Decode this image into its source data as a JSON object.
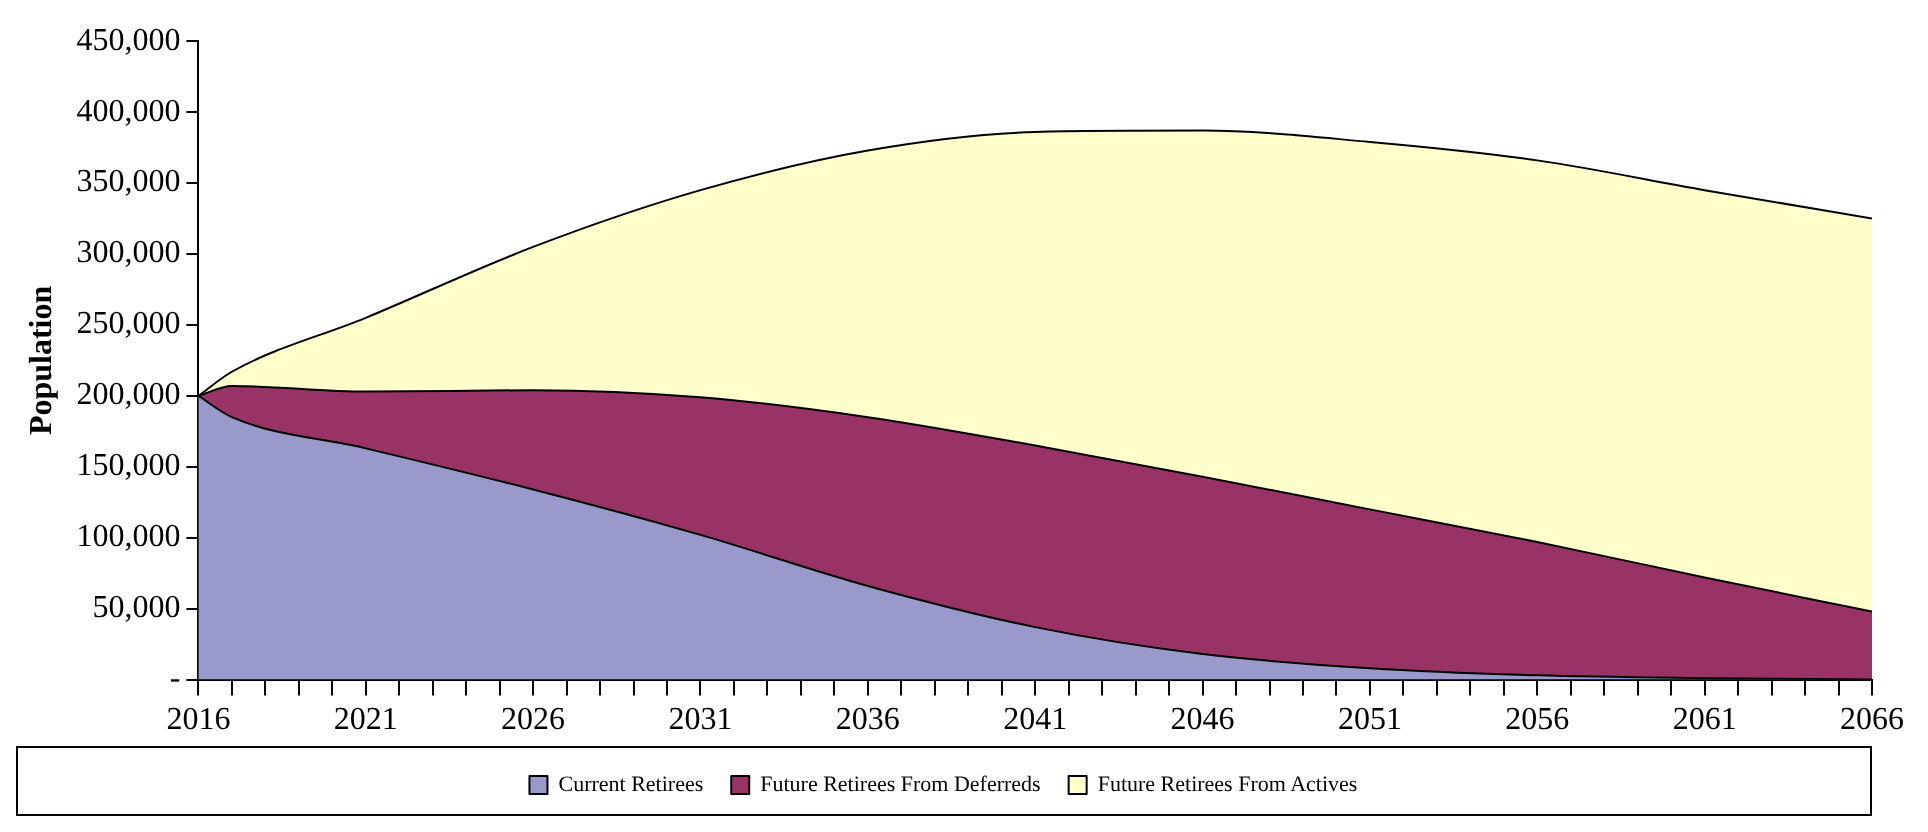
{
  "chart_data": {
    "type": "area",
    "stacked": true,
    "ylabel": "Population",
    "x": [
      2016,
      2017,
      2021,
      2026,
      2031,
      2036,
      2041,
      2046,
      2051,
      2056,
      2061,
      2066
    ],
    "series": [
      {
        "name": "Current Retirees",
        "color": "#9999cc",
        "values": [
          200000,
          185000,
          163000,
          134000,
          102000,
          66000,
          37000,
          18000,
          8000,
          3000,
          1000,
          0
        ]
      },
      {
        "name": "Future Retirees From Deferreds",
        "color": "#993366",
        "values": [
          0,
          22000,
          40000,
          70000,
          97000,
          119000,
          128000,
          125000,
          112000,
          94000,
          71000,
          48000
        ]
      },
      {
        "name": "Future Retirees From Actives",
        "color": "#ffffcc",
        "values": [
          0,
          10000,
          52000,
          101000,
          146000,
          188000,
          221000,
          244000,
          259000,
          269000,
          273000,
          277000
        ]
      }
    ],
    "xlim": [
      2016,
      2066
    ],
    "xticks": [
      2016,
      {
        "value": 2017,
        "label": null
      },
      {
        "value": 2018,
        "label": null
      },
      {
        "value": 2019,
        "label": null
      },
      {
        "value": 2020,
        "label": null
      },
      2021,
      {
        "value": 2022,
        "label": null
      },
      {
        "value": 2023,
        "label": null
      },
      {
        "value": 2024,
        "label": null
      },
      {
        "value": 2025,
        "label": null
      },
      2026,
      {
        "value": 2027,
        "label": null
      },
      {
        "value": 2028,
        "label": null
      },
      {
        "value": 2029,
        "label": null
      },
      {
        "value": 2030,
        "label": null
      },
      2031,
      {
        "value": 2032,
        "label": null
      },
      {
        "value": 2033,
        "label": null
      },
      {
        "value": 2034,
        "label": null
      },
      {
        "value": 2035,
        "label": null
      },
      2036,
      {
        "value": 2037,
        "label": null
      },
      {
        "value": 2038,
        "label": null
      },
      {
        "value": 2039,
        "label": null
      },
      {
        "value": 2040,
        "label": null
      },
      2041,
      {
        "value": 2042,
        "label": null
      },
      {
        "value": 2043,
        "label": null
      },
      {
        "value": 2044,
        "label": null
      },
      {
        "value": 2045,
        "label": null
      },
      2046,
      {
        "value": 2047,
        "label": null
      },
      {
        "value": 2048,
        "label": null
      },
      {
        "value": 2049,
        "label": null
      },
      {
        "value": 2050,
        "label": null
      },
      2051,
      {
        "value": 2052,
        "label": null
      },
      {
        "value": 2053,
        "label": null
      },
      {
        "value": 2054,
        "label": null
      },
      {
        "value": 2055,
        "label": null
      },
      2056,
      {
        "value": 2057,
        "label": null
      },
      {
        "value": 2058,
        "label": null
      },
      {
        "value": 2059,
        "label": null
      },
      {
        "value": 2060,
        "label": null
      },
      2061,
      {
        "value": 2062,
        "label": null
      },
      {
        "value": 2063,
        "label": null
      },
      {
        "value": 2064,
        "label": null
      },
      {
        "value": 2065,
        "label": null
      },
      2066
    ],
    "ylim": [
      0,
      450000
    ],
    "yticks": [
      {
        "value": 0,
        "label": "-"
      },
      {
        "value": 50000,
        "label": "50,000"
      },
      {
        "value": 100000,
        "label": "100,000"
      },
      {
        "value": 150000,
        "label": "150,000"
      },
      {
        "value": 200000,
        "label": "200,000"
      },
      {
        "value": 250000,
        "label": "250,000"
      },
      {
        "value": 300000,
        "label": "300,000"
      },
      {
        "value": 350000,
        "label": "350,000"
      },
      {
        "value": 400000,
        "label": "400,000"
      },
      {
        "value": 450000,
        "label": "450,000"
      }
    ],
    "grid": false,
    "legend": "bottom"
  }
}
